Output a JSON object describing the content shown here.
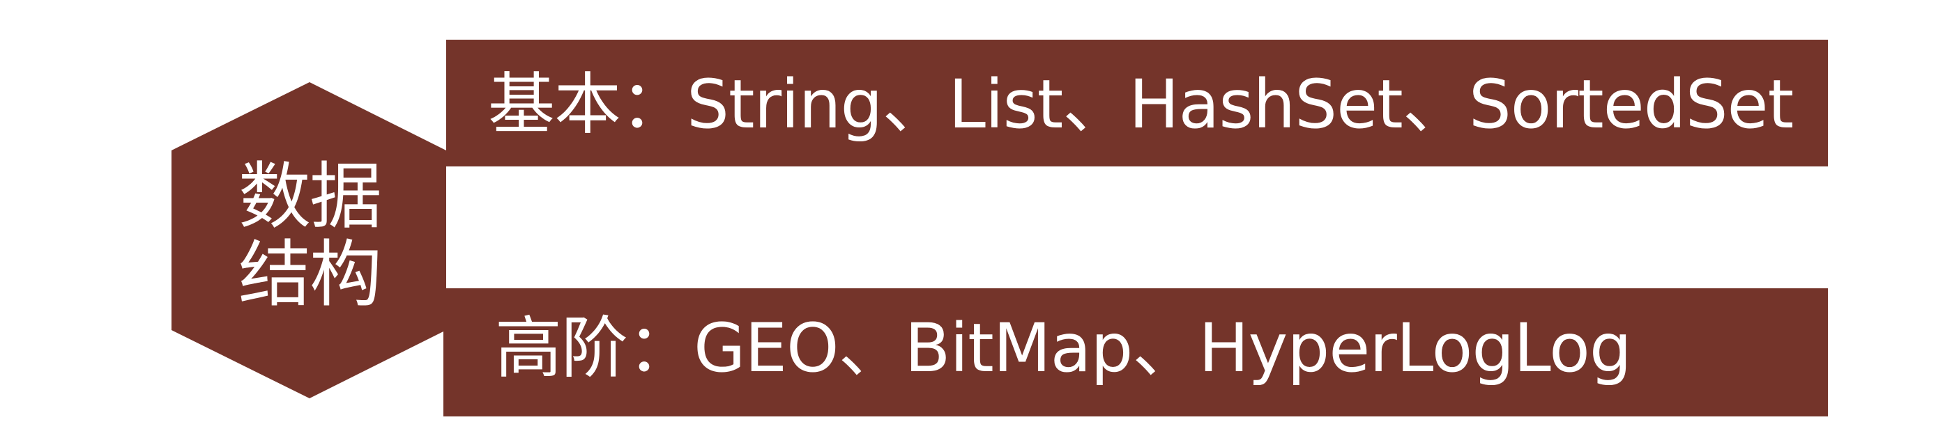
{
  "colors": {
    "fill": "#74342a",
    "text": "#ffffff",
    "background": "#ffffff"
  },
  "center": {
    "line1": "数据",
    "line2": "结构"
  },
  "items": [
    {
      "label": "基本：String、List、HashSet、SortedSet"
    },
    {
      "label": "高阶：GEO、BitMap、HyperLogLog"
    }
  ]
}
